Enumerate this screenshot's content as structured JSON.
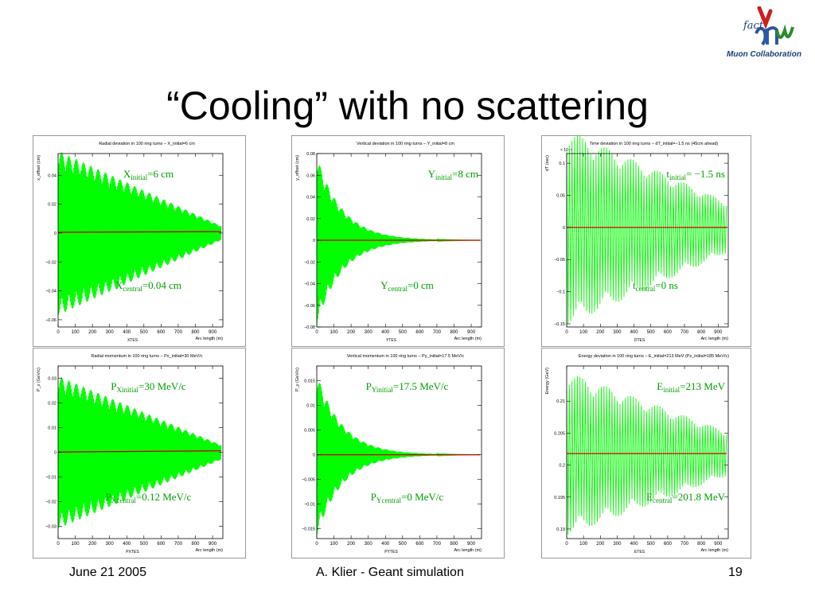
{
  "slide": {
    "title": "“Cooling” with no scattering",
    "footer_left": "June 21 2005",
    "footer_center": "A. Klier - Geant simulation",
    "footer_right": "19",
    "logo_text": "Muon Collaboration",
    "logo_mark": "fact"
  },
  "colors": {
    "signal": "#00ff00",
    "central": "#cc0000",
    "annotation": "#00a000",
    "frame": "#000000"
  },
  "chart_data": [
    {
      "type": "line",
      "title": "Radial deviation in 100 ring turns – X_initial=6 cm",
      "xlabel": "Arc length (m)",
      "ylabel": "x_offset (cm)",
      "histname": "XTES",
      "xlim": [
        0,
        960
      ],
      "ylim": [
        -0.065,
        0.055
      ],
      "xticks": [
        "0",
        "100",
        "200",
        "300",
        "400",
        "500",
        "600",
        "700",
        "800",
        "900"
      ],
      "yticks": [
        {
          "v": 0.04,
          "t": "0.04"
        },
        {
          "v": 0.02,
          "t": "0.02"
        },
        {
          "v": 0,
          "t": "0"
        },
        {
          "v": -0.02,
          "t": "−0.02"
        },
        {
          "v": -0.04,
          "t": "−0.04"
        },
        {
          "v": -0.06,
          "t": "−0.06"
        }
      ],
      "series": [
        {
          "role": "oscillation",
          "x_end": 950,
          "initial_amplitude": 0.057,
          "final_amplitude": 0.005,
          "cycles": 220
        },
        {
          "role": "central",
          "x": [
            0,
            950
          ],
          "y": [
            0.0005,
            0.001
          ]
        }
      ],
      "annotations": [
        {
          "base": "X",
          "sub": "initial",
          "rest": "=6 cm",
          "pos": "top-center"
        },
        {
          "base": "X",
          "sub": "central",
          "rest": "=0.04 cm",
          "pos": "bottom-center"
        }
      ]
    },
    {
      "type": "line",
      "title": "Vertical deviation in 100 ring turns – Y_initial=8 cm",
      "xlabel": "Arc length (m)",
      "ylabel": "y_offset (cm)",
      "histname": "YTES",
      "xlim": [
        0,
        960
      ],
      "ylim": [
        -0.08,
        0.08
      ],
      "xticks": [
        "0",
        "100",
        "200",
        "300",
        "400",
        "500",
        "600",
        "700",
        "800",
        "900"
      ],
      "yticks": [
        {
          "v": 0.08,
          "t": "0.08"
        },
        {
          "v": 0.06,
          "t": "0.06"
        },
        {
          "v": 0.04,
          "t": "0.04"
        },
        {
          "v": 0.02,
          "t": "0.02"
        },
        {
          "v": 0,
          "t": "0"
        },
        {
          "v": -0.02,
          "t": "−0.02"
        },
        {
          "v": -0.04,
          "t": "−0.04"
        },
        {
          "v": -0.06,
          "t": "−0.06"
        },
        {
          "v": -0.08,
          "t": "−0.08"
        }
      ],
      "series": [
        {
          "role": "oscillation",
          "x_end": 950,
          "initial_amplitude": 0.078,
          "final_amplitude": 0.0,
          "decay_length": 150,
          "cycles": 220
        },
        {
          "role": "central",
          "x": [
            0,
            950
          ],
          "y": [
            0,
            0
          ]
        }
      ],
      "annotations": [
        {
          "base": "Y",
          "sub": "initial",
          "rest": "=8 cm",
          "pos": "top-right"
        },
        {
          "base": "Y",
          "sub": "central",
          "rest": "=0 cm",
          "pos": "bottom-center"
        }
      ]
    },
    {
      "type": "line",
      "title": "Time deviation in 100 ring turns – dT_initial=−1.5 ns (45cm ahead)",
      "xlabel": "Arc length (m)",
      "ylabel": "dT (sec)",
      "histname": "DTES",
      "yscale_label": "× 10⁻⁹",
      "xlim": [
        0,
        960
      ],
      "ylim": [
        -0.155,
        0.115
      ],
      "xticks": [
        "0",
        "100",
        "200",
        "300",
        "400",
        "500",
        "600",
        "700",
        "800",
        "900"
      ],
      "yticks": [
        {
          "v": 0.1,
          "t": "0.1"
        },
        {
          "v": 0.05,
          "t": "0.05"
        },
        {
          "v": 0,
          "t": "0"
        },
        {
          "v": -0.05,
          "t": "−0.05"
        },
        {
          "v": -0.1,
          "t": "−0.1"
        },
        {
          "v": -0.15,
          "t": "−0.15"
        }
      ],
      "series": [
        {
          "role": "oscillation",
          "x_end": 950,
          "initial_amplitude": 0.152,
          "final_amplitude": 0.04,
          "cycles": 60
        },
        {
          "role": "central",
          "x": [
            0,
            950
          ],
          "y": [
            0,
            0
          ]
        }
      ],
      "annotations": [
        {
          "base": "t",
          "sub": "initial",
          "rest": "= −1.5 ns",
          "pos": "top-right"
        },
        {
          "base": "t",
          "sub": "central",
          "rest": "=0 ns",
          "pos": "bottom-center"
        }
      ]
    },
    {
      "type": "line",
      "title": "Radial momentum in 100 ring turns – Px_initial=30 MeV/c",
      "xlabel": "Arc length (m)",
      "ylabel": "P_x (GeV/c)",
      "histname": "PXTES",
      "xlim": [
        0,
        960
      ],
      "ylim": [
        -0.035,
        0.035
      ],
      "xticks": [
        "0",
        "100",
        "200",
        "300",
        "400",
        "500",
        "600",
        "700",
        "800",
        "900"
      ],
      "yticks": [
        {
          "v": 0.03,
          "t": "0.03"
        },
        {
          "v": 0.02,
          "t": "0.02"
        },
        {
          "v": 0.01,
          "t": "0.01"
        },
        {
          "v": 0,
          "t": "0"
        },
        {
          "v": -0.01,
          "t": "−0.01"
        },
        {
          "v": -0.02,
          "t": "−0.02"
        },
        {
          "v": -0.03,
          "t": "−0.03"
        }
      ],
      "series": [
        {
          "role": "oscillation",
          "x_end": 950,
          "initial_amplitude": 0.031,
          "final_amplitude": 0.003,
          "cycles": 220
        },
        {
          "role": "central",
          "x": [
            0,
            950
          ],
          "y": [
            0.0001,
            0.0006
          ]
        }
      ],
      "annotations": [
        {
          "base": "P",
          "sub": "Xinitial",
          "rest": "=30 MeV/c",
          "pos": "top-center"
        },
        {
          "base": "P",
          "sub": "Xcentral",
          "rest": "=0.12 MeV/c",
          "pos": "bottom-center"
        }
      ]
    },
    {
      "type": "line",
      "title": "Vertical momentum in 100 ring turns – Py_initial=17.5 MeV/c",
      "xlabel": "Arc length (m)",
      "ylabel": "P_y (GeV/c)",
      "histname": "PYTES",
      "xlim": [
        0,
        960
      ],
      "ylim": [
        -0.017,
        0.018
      ],
      "xticks": [
        "0",
        "100",
        "200",
        "300",
        "400",
        "500",
        "600",
        "700",
        "800",
        "900"
      ],
      "yticks": [
        {
          "v": 0.015,
          "t": "0.015"
        },
        {
          "v": 0.01,
          "t": "0.01"
        },
        {
          "v": 0.005,
          "t": "0.005"
        },
        {
          "v": 0,
          "t": "0"
        },
        {
          "v": -0.005,
          "t": "−0.005"
        },
        {
          "v": -0.01,
          "t": "−0.01"
        },
        {
          "v": -0.015,
          "t": "−0.015"
        }
      ],
      "series": [
        {
          "role": "oscillation",
          "x_end": 950,
          "initial_amplitude": 0.0165,
          "final_amplitude": 0.0,
          "decay_length": 150,
          "cycles": 220
        },
        {
          "role": "central",
          "x": [
            0,
            950
          ],
          "y": [
            0,
            0
          ]
        }
      ],
      "annotations": [
        {
          "base": "P",
          "sub": "Yinitial",
          "rest": "=17.5 MeV/c",
          "pos": "top-center"
        },
        {
          "base": "P",
          "sub": "Ycentral",
          "rest": "=0 MeV/c",
          "pos": "bottom-center"
        }
      ]
    },
    {
      "type": "line",
      "title": "Energy deviation in 100 ring turns – E_initial=213 MeV (Pz_initial=185 MeV/c)",
      "xlabel": "Arc length (m)",
      "ylabel": "Energy (GeV)",
      "histname": "ETES",
      "xlim": [
        0,
        960
      ],
      "ylim": [
        0.1885,
        0.2155
      ],
      "xticks": [
        "0",
        "100",
        "200",
        "300",
        "400",
        "500",
        "600",
        "700",
        "800",
        "900"
      ],
      "yticks": [
        {
          "v": 0.21,
          "t": "0.21"
        },
        {
          "v": 0.205,
          "t": "0.205"
        },
        {
          "v": 0.2,
          "t": "0.2"
        },
        {
          "v": 0.195,
          "t": "0.195"
        },
        {
          "v": 0.19,
          "t": "0.19"
        }
      ],
      "series": [
        {
          "role": "oscillation",
          "x_end": 950,
          "center": 0.2018,
          "initial_amplitude": 0.0128,
          "final_amplitude": 0.0035,
          "cycles": 60
        },
        {
          "role": "central",
          "x": [
            0,
            950
          ],
          "y": [
            0.2018,
            0.2018
          ]
        }
      ],
      "annotations": [
        {
          "base": "E",
          "sub": "initial",
          "rest": "=213 MeV",
          "pos": "top-right"
        },
        {
          "base": "E",
          "sub": "central",
          "rest": "=201.8 MeV",
          "pos": "bottom-right"
        }
      ]
    }
  ]
}
